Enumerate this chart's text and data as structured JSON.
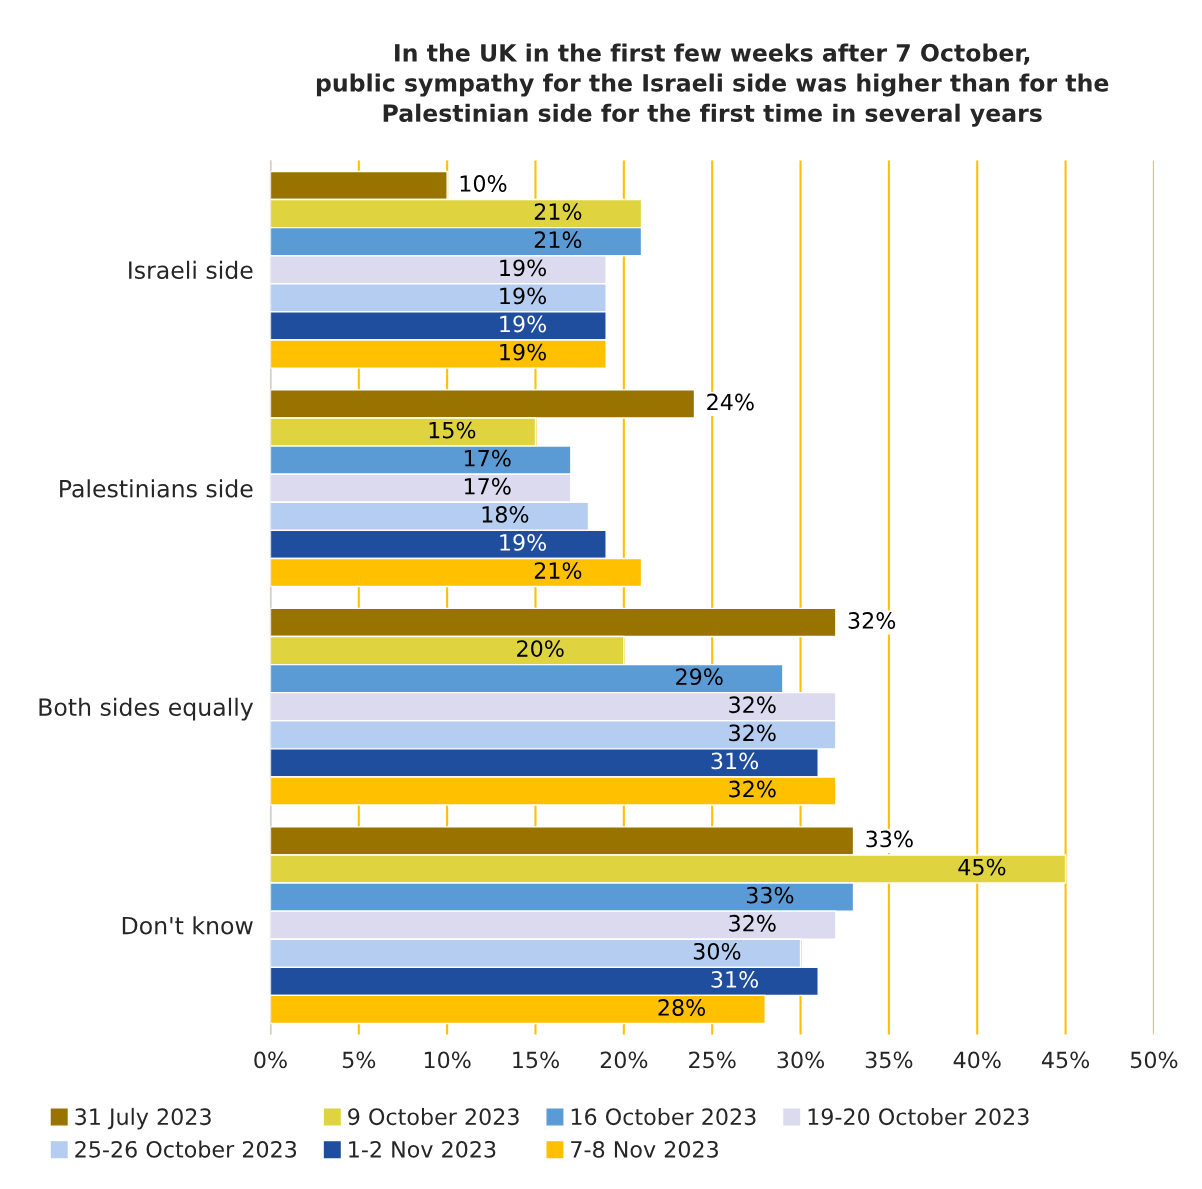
{
  "chart_data": {
    "type": "bar",
    "orientation": "horizontal",
    "title": "In the UK in the first few weeks after 7 October,\npublic sympathy for the Israeli side was higher than for the\nPalestinian side for the first time in several years",
    "categories": [
      "Israeli side",
      "Palestinians side",
      "Both sides equally",
      "Don't know"
    ],
    "series": [
      {
        "name": "31 July 2023",
        "color": "#997300",
        "values": [
          10,
          24,
          32,
          33
        ],
        "value_labels": [
          "10%",
          "24%",
          "32%",
          "33%"
        ]
      },
      {
        "name": "9 October 2023",
        "color": "#dfd43f",
        "values": [
          21,
          15,
          20,
          45
        ],
        "value_labels": [
          "21%",
          "15%",
          "20%",
          "45%"
        ]
      },
      {
        "name": "16 October 2023",
        "color": "#5b9bd5",
        "values": [
          21,
          17,
          29,
          33
        ],
        "value_labels": [
          "21%",
          "17%",
          "29%",
          "33%"
        ]
      },
      {
        "name": "19-20 October 2023",
        "color": "#dcdaee",
        "values": [
          19,
          17,
          32,
          32
        ],
        "value_labels": [
          "19%",
          "17%",
          "32%",
          "32%"
        ]
      },
      {
        "name": "25-26 October 2023",
        "color": "#b4cdf0",
        "values": [
          19,
          18,
          32,
          30
        ],
        "value_labels": [
          "19%",
          "18%",
          "32%",
          "30%"
        ]
      },
      {
        "name": "1-2 Nov 2023",
        "color": "#1f4e9f",
        "values": [
          19,
          19,
          31,
          31
        ],
        "value_labels": [
          "19%",
          "19%",
          "31%",
          "31%"
        ]
      },
      {
        "name": "7-8 Nov 2023",
        "color": "#ffc000",
        "values": [
          19,
          21,
          32,
          28
        ],
        "value_labels": [
          "19%",
          "21%",
          "32%",
          "28%"
        ]
      }
    ],
    "xlim": [
      0,
      50
    ],
    "xticks": [
      {
        "value": 0,
        "label": "0%"
      },
      {
        "value": 5,
        "label": "5%"
      },
      {
        "value": 10,
        "label": "10%"
      },
      {
        "value": 15,
        "label": "15%"
      },
      {
        "value": 20,
        "label": "20%"
      },
      {
        "value": 25,
        "label": "25%"
      },
      {
        "value": 30,
        "label": "30%"
      },
      {
        "value": 35,
        "label": "35%"
      },
      {
        "value": 40,
        "label": "40%"
      },
      {
        "value": 45,
        "label": "45%"
      },
      {
        "value": 50,
        "label": "50%"
      }
    ],
    "grid": "x",
    "legend": "bottom"
  }
}
